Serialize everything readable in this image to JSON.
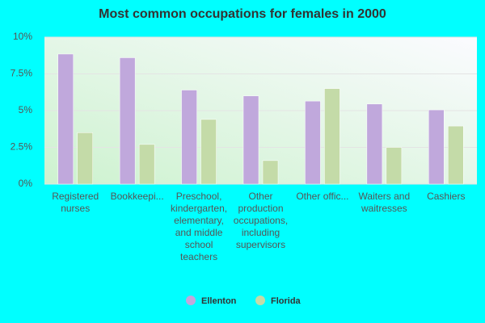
{
  "chart_data": {
    "type": "bar",
    "title": "Most common occupations for females in 2000",
    "categories": [
      "Registered nurses",
      "Bookkeepi...",
      "Preschool, kindergarten, elementary, and middle school teachers",
      "Other production occupations, including supervisors",
      "Other offic...",
      "Waiters and waitresses",
      "Cashiers"
    ],
    "series": [
      {
        "name": "Ellenton",
        "color": "#c0a8dc",
        "values": [
          8.85,
          8.6,
          6.4,
          6.0,
          5.65,
          5.45,
          5.05
        ]
      },
      {
        "name": "Florida",
        "color": "#c4dba8",
        "values": [
          3.5,
          2.7,
          4.4,
          1.6,
          6.5,
          2.5,
          3.95
        ]
      }
    ],
    "ylim": [
      0,
      10
    ],
    "yticks": [
      {
        "value": 0,
        "label": "0%"
      },
      {
        "value": 2.5,
        "label": "2.5%"
      },
      {
        "value": 5,
        "label": "5%"
      },
      {
        "value": 7.5,
        "label": "7.5%"
      },
      {
        "value": 10,
        "label": "10%"
      }
    ],
    "grid": true
  }
}
